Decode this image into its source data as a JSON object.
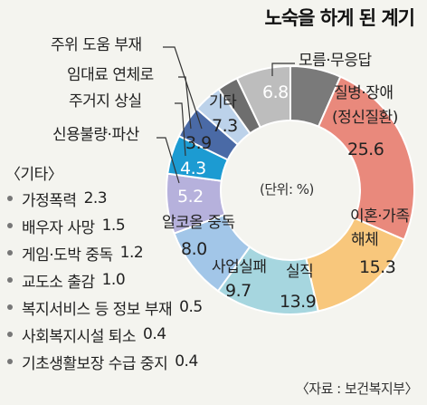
{
  "chart_data": {
    "type": "pie",
    "title": "노숙을 하게 된 계기",
    "unit": "(단위: %)",
    "slices": [
      {
        "name": "모름·무응답",
        "value": 6.8,
        "color": "#7a7a7a"
      },
      {
        "name": "질병·장애 (정신질환)",
        "value": 25.6,
        "color": "#e9897c"
      },
      {
        "name": "이혼·가족 해체",
        "value": 15.3,
        "color": "#f8c77c"
      },
      {
        "name": "실직",
        "value": 13.9,
        "color": "#a6d6df"
      },
      {
        "name": "사업실패",
        "value": 9.7,
        "color": "#a2c6e8"
      },
      {
        "name": "알코올 중독",
        "value": 8.0,
        "color": "#b6b1dc"
      },
      {
        "name": "신용불량·파산",
        "value": 5.2,
        "color": "#1c9bd2"
      },
      {
        "name": "주거지 상실",
        "value": 4.3,
        "color": "#4a6aa6"
      },
      {
        "name": "임대료 연체로",
        "value": 3.9,
        "color": "#bcd2ea"
      },
      {
        "name": "주위 도움 부재",
        "value": 2.8,
        "color": "#6e6e6e"
      },
      {
        "name": "기타",
        "value": 7.3,
        "color": "#bdbdbd"
      }
    ],
    "labels": {
      "no_answer": {
        "name": "모름·무응답",
        "value": "6.8"
      },
      "illness": {
        "name1": "질병·장애",
        "name2": "(정신질환)",
        "value": "25.6"
      },
      "divorce": {
        "name1": "이혼·가족",
        "name2": "해체",
        "value": "15.3"
      },
      "unemployment": {
        "name": "실직",
        "value": "13.9"
      },
      "business": {
        "name": "사업실패",
        "value": "9.7"
      },
      "alcohol": {
        "name": "알코올 중독",
        "value": "8.0"
      },
      "credit": {
        "name": "신용불량·파산",
        "value": "5.2"
      },
      "housing_loss": {
        "name": "주거지 상실",
        "value": "4.3"
      },
      "rent": {
        "name": "임대료 연체로",
        "value": "3.9"
      },
      "no_help": {
        "name": "주위 도움 부재",
        "value": ""
      },
      "other": {
        "name": "기타",
        "value": "7.3"
      }
    },
    "other_breakdown": {
      "heading": "〈기타〉",
      "items": [
        {
          "name": "가정폭력",
          "value": "2.3"
        },
        {
          "name": "배우자 사망",
          "value": "1.5"
        },
        {
          "name": "게임·도박 중독",
          "value": "1.2"
        },
        {
          "name": "교도소 출감",
          "value": "1.0"
        },
        {
          "name": "복지서비스 등 정보 부재",
          "value": "0.5"
        },
        {
          "name": "사회복지시설 퇴소",
          "value": "0.4"
        },
        {
          "name": "기초생활보장 수급 중지",
          "value": "0.4"
        }
      ]
    },
    "source": "〈자료 : 보건복지부〉"
  }
}
